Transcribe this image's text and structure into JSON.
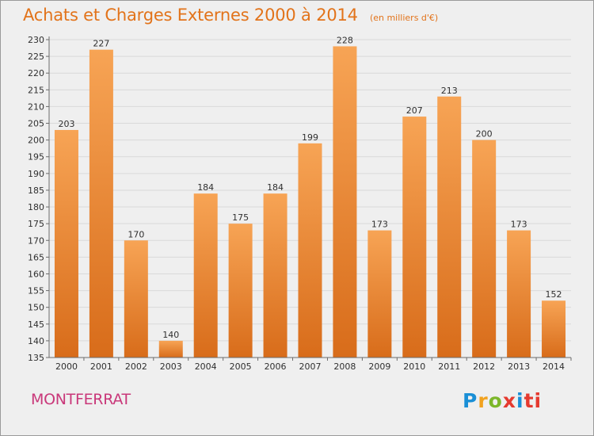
{
  "header": {
    "title": "Achats et Charges Externes 2000 à 2014",
    "subtitle": "(en milliers d'€)"
  },
  "footer": {
    "commune": "MONTFERRAT",
    "logo": "Proxiti"
  },
  "colors": {
    "bar_light": "#f7a455",
    "bar_dark": "#d86c1a",
    "title": "#e2731a",
    "commune": "#c9387a",
    "gridline": "#d9d9d9",
    "background": "#efefef"
  },
  "chart_data": {
    "type": "bar",
    "title": "Achats et Charges Externes 2000 à 2014",
    "subtitle": "(en milliers d'€)",
    "categories": [
      "2000",
      "2001",
      "2002",
      "2003",
      "2004",
      "2005",
      "2006",
      "2007",
      "2008",
      "2009",
      "2010",
      "2011",
      "2012",
      "2013",
      "2014"
    ],
    "values": [
      203,
      227,
      170,
      140,
      184,
      175,
      184,
      199,
      228,
      173,
      207,
      213,
      200,
      173,
      152
    ],
    "ylim": [
      135,
      230
    ],
    "yticks": [
      135,
      140,
      145,
      150,
      155,
      160,
      165,
      170,
      175,
      180,
      185,
      190,
      195,
      200,
      205,
      210,
      215,
      220,
      225,
      230
    ],
    "grid": true,
    "show_value_labels": true
  }
}
